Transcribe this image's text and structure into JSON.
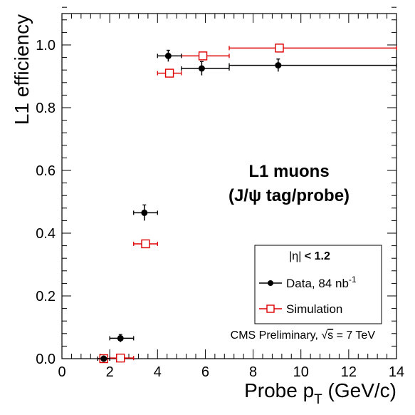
{
  "chart_data": {
    "type": "scatter",
    "xlabel": "Probe p",
    "xlabel_sub": "T",
    "xlabel_unit": " (GeV/c)",
    "ylabel": "L1 efficiency",
    "xlim": [
      0,
      14
    ],
    "ylim": [
      0,
      1.1
    ],
    "x_ticks": [
      0,
      2,
      4,
      6,
      8,
      10,
      12,
      14
    ],
    "y_ticks": [
      0.0,
      0.2,
      0.4,
      0.6,
      0.8,
      1.0
    ],
    "x_tick_labels": [
      "0",
      "2",
      "4",
      "6",
      "8",
      "10",
      "12",
      "14"
    ],
    "y_tick_labels": [
      "0.0",
      "0.2",
      "0.4",
      "0.6",
      "0.8",
      "1.0"
    ],
    "grid": false,
    "header_line1": "L1 muons",
    "header_line2": "(J/ψ tag/probe)",
    "legend": {
      "placement": "bottom-right",
      "title_abs": "|η|",
      "title_cut": " < 1.2"
    },
    "note_prefix": "CMS Preliminary,  ",
    "note_sqrt": "√",
    "note_s": "s",
    "note_suffix": " = 7 TeV",
    "series": [
      {
        "name": "Data, 84 nb",
        "name_sup": "-1",
        "marker": "filled-circle",
        "color": "#000000",
        "points": [
          {
            "x": 1.75,
            "xlo": 1.5,
            "xhi": 2.0,
            "y": 0.0,
            "yerr": 0.005
          },
          {
            "x": 2.45,
            "xlo": 2.0,
            "xhi": 3.0,
            "y": 0.065,
            "yerr": 0.012
          },
          {
            "x": 3.45,
            "xlo": 3.0,
            "xhi": 4.0,
            "y": 0.465,
            "yerr": 0.025
          },
          {
            "x": 4.45,
            "xlo": 4.0,
            "xhi": 5.0,
            "y": 0.965,
            "yerr": 0.018
          },
          {
            "x": 5.85,
            "xlo": 5.0,
            "xhi": 7.0,
            "y": 0.925,
            "yerr": 0.022
          },
          {
            "x": 9.05,
            "xlo": 7.0,
            "xhi": 14.0,
            "y": 0.935,
            "yerr": 0.02
          }
        ]
      },
      {
        "name": "Simulation",
        "marker": "open-square",
        "color": "#dd0000",
        "points": [
          {
            "x": 1.75,
            "xlo": 1.5,
            "xhi": 2.0,
            "y": 0.0
          },
          {
            "x": 2.45,
            "xlo": 2.0,
            "xhi": 3.0,
            "y": 0.002
          },
          {
            "x": 3.5,
            "xlo": 3.0,
            "xhi": 4.0,
            "y": 0.366
          },
          {
            "x": 4.5,
            "xlo": 4.0,
            "xhi": 5.0,
            "y": 0.91
          },
          {
            "x": 5.9,
            "xlo": 5.0,
            "xhi": 7.0,
            "y": 0.965
          },
          {
            "x": 9.1,
            "xlo": 7.0,
            "xhi": 14.0,
            "y": 0.99
          }
        ]
      }
    ]
  }
}
